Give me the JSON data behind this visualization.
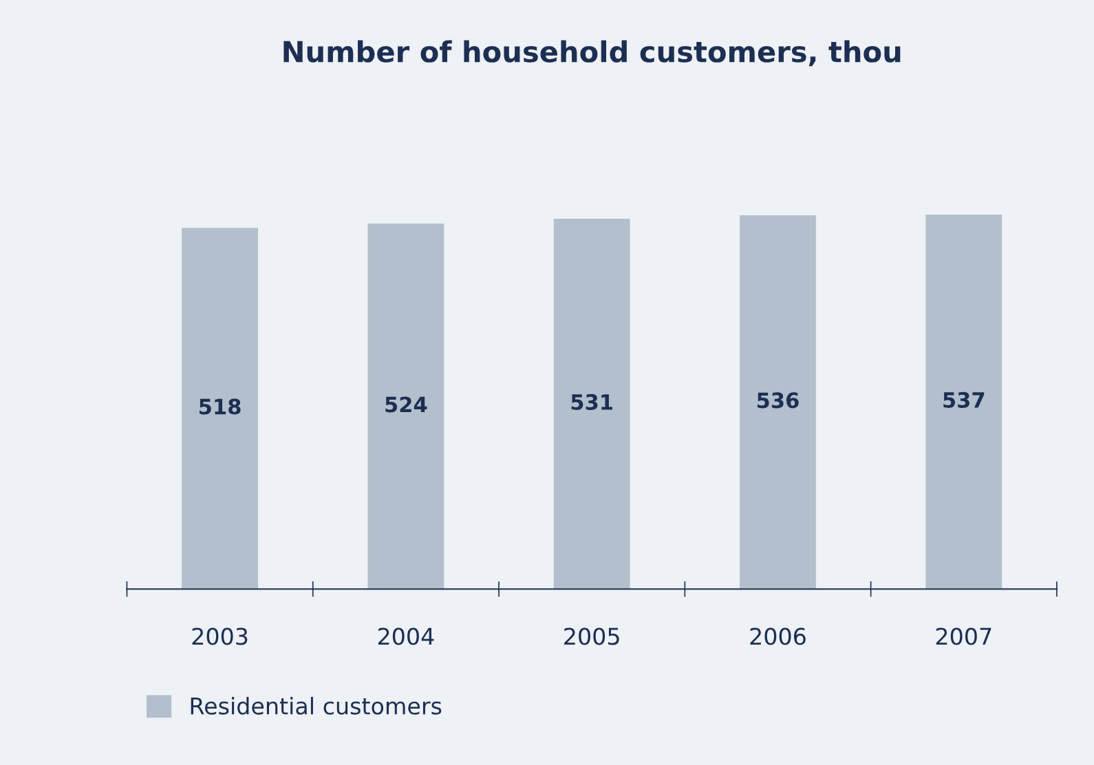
{
  "chart_data": {
    "type": "bar",
    "title": "Number of household customers, thou",
    "categories": [
      "2003",
      "2004",
      "2005",
      "2006",
      "2007"
    ],
    "series": [
      {
        "name": "Residential customers",
        "color": "#b3bfcc",
        "values": [
          518,
          524,
          531,
          536,
          537
        ]
      }
    ],
    "tick_labels": "x",
    "data_labels": true,
    "grid": false,
    "legend": "bottom left"
  }
}
